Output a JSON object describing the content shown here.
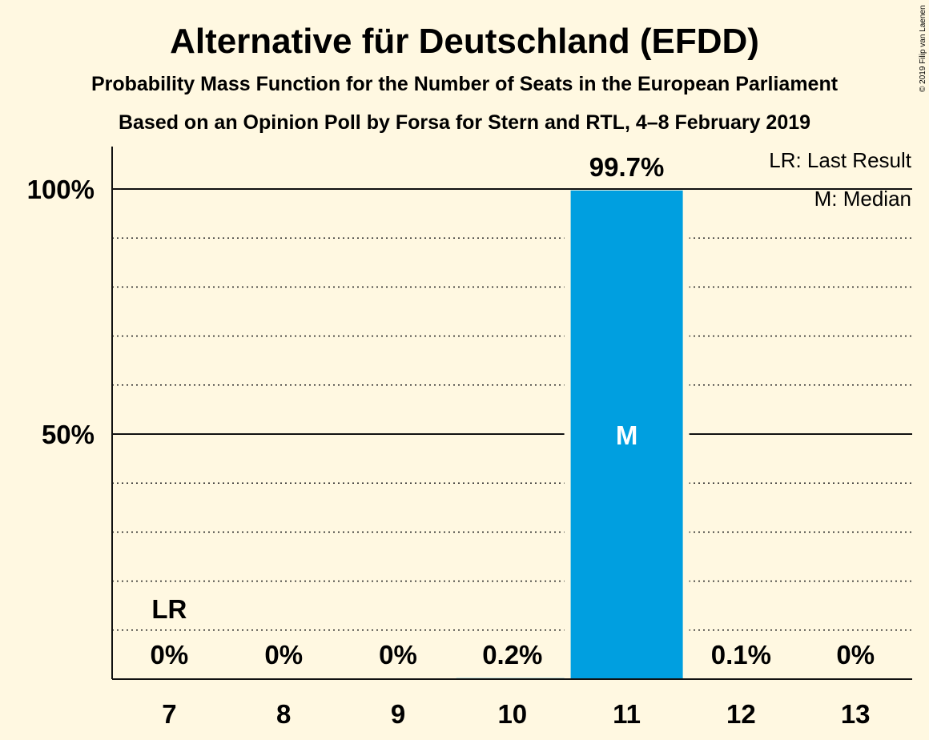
{
  "chart_data": {
    "type": "bar",
    "title": "Alternative für Deutschland (EFDD)",
    "subtitle": "Probability Mass Function for the Number of Seats in the European Parliament",
    "subtitle2": "Based on an Opinion Poll by Forsa for Stern and RTL, 4–8 February 2019",
    "copyright": "© 2019 Filip van Laenen",
    "categories": [
      "7",
      "8",
      "9",
      "10",
      "11",
      "12",
      "13"
    ],
    "values": [
      0,
      0,
      0,
      0.2,
      99.7,
      0.1,
      0
    ],
    "value_labels": [
      "0%",
      "0%",
      "0%",
      "0.2%",
      "99.7%",
      "0.1%",
      "0%"
    ],
    "ylim": [
      0,
      100
    ],
    "y_ticks": [
      {
        "value": 50,
        "label": "50%"
      },
      {
        "value": 100,
        "label": "100%"
      }
    ],
    "minor_grid_step": 10,
    "last_result": {
      "category": "7",
      "label": "LR"
    },
    "median": {
      "category": "11",
      "label": "M"
    },
    "legend": [
      "LR: Last Result",
      "M: Median"
    ],
    "bar_color": "#009FE0",
    "background": "#FFF8E1"
  }
}
